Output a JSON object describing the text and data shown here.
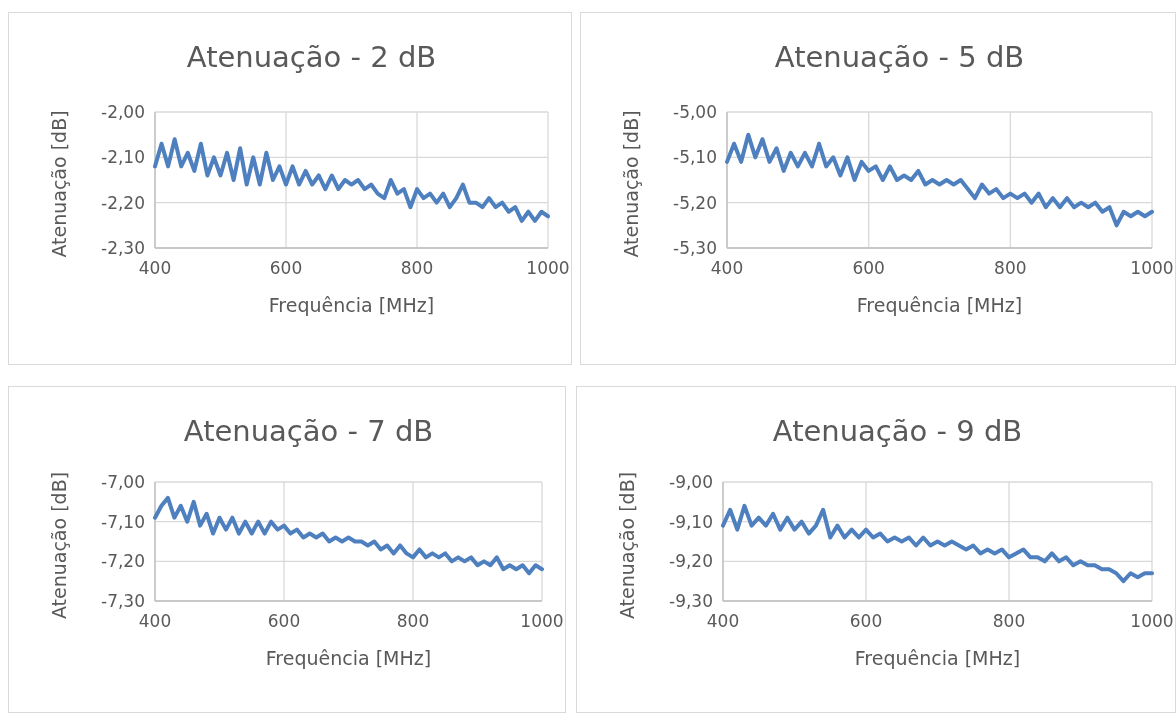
{
  "chart_data": [
    {
      "type": "line",
      "title": "Atenuação - 2 dB",
      "xlabel": "Frequência [MHz]",
      "ylabel": "Atenuação [dB]",
      "grid": true,
      "xlim": [
        400,
        1000
      ],
      "xticks": [
        400,
        600,
        800,
        1000
      ],
      "ylim": [
        -2.3,
        -2.0
      ],
      "yticks": [
        {
          "value": -2.3,
          "label": "-2,30"
        },
        {
          "value": -2.2,
          "label": "-2,20"
        },
        {
          "value": -2.1,
          "label": "-2,10"
        },
        {
          "value": -2.0,
          "label": "-2,00"
        }
      ],
      "x": [
        400,
        410,
        420,
        430,
        440,
        450,
        460,
        470,
        480,
        490,
        500,
        510,
        520,
        530,
        540,
        550,
        560,
        570,
        580,
        590,
        600,
        610,
        620,
        630,
        640,
        650,
        660,
        670,
        680,
        690,
        700,
        710,
        720,
        730,
        740,
        750,
        760,
        770,
        780,
        790,
        800,
        810,
        820,
        830,
        840,
        850,
        860,
        870,
        880,
        890,
        900,
        910,
        920,
        930,
        940,
        950,
        960,
        970,
        980,
        990,
        1000
      ],
      "series": [
        {
          "color": "#4e7fbf",
          "values": [
            -2.12,
            -2.07,
            -2.12,
            -2.06,
            -2.12,
            -2.09,
            -2.13,
            -2.07,
            -2.14,
            -2.1,
            -2.14,
            -2.09,
            -2.15,
            -2.08,
            -2.16,
            -2.1,
            -2.16,
            -2.09,
            -2.15,
            -2.12,
            -2.16,
            -2.12,
            -2.16,
            -2.13,
            -2.16,
            -2.14,
            -2.17,
            -2.14,
            -2.17,
            -2.15,
            -2.16,
            -2.15,
            -2.17,
            -2.16,
            -2.18,
            -2.19,
            -2.15,
            -2.18,
            -2.17,
            -2.21,
            -2.17,
            -2.19,
            -2.18,
            -2.2,
            -2.18,
            -2.21,
            -2.19,
            -2.16,
            -2.2,
            -2.2,
            -2.21,
            -2.19,
            -2.21,
            -2.2,
            -2.22,
            -2.21,
            -2.24,
            -2.22,
            -2.24,
            -2.22,
            -2.23
          ]
        }
      ]
    },
    {
      "type": "line",
      "title": "Atenuação - 5 dB",
      "xlabel": "Frequência [MHz]",
      "ylabel": "Atenuação [dB]",
      "grid": true,
      "xlim": [
        400,
        1000
      ],
      "xticks": [
        400,
        600,
        800,
        1000
      ],
      "ylim": [
        -5.3,
        -5.0
      ],
      "yticks": [
        {
          "value": -5.3,
          "label": "-5,30"
        },
        {
          "value": -5.2,
          "label": "-5,20"
        },
        {
          "value": -5.1,
          "label": "-5,10"
        },
        {
          "value": -5.0,
          "label": "-5,00"
        }
      ],
      "x": [
        400,
        410,
        420,
        430,
        440,
        450,
        460,
        470,
        480,
        490,
        500,
        510,
        520,
        530,
        540,
        550,
        560,
        570,
        580,
        590,
        600,
        610,
        620,
        630,
        640,
        650,
        660,
        670,
        680,
        690,
        700,
        710,
        720,
        730,
        740,
        750,
        760,
        770,
        780,
        790,
        800,
        810,
        820,
        830,
        840,
        850,
        860,
        870,
        880,
        890,
        900,
        910,
        920,
        930,
        940,
        950,
        960,
        970,
        980,
        990,
        1000
      ],
      "series": [
        {
          "color": "#4e7fbf",
          "values": [
            -5.11,
            -5.07,
            -5.11,
            -5.05,
            -5.1,
            -5.06,
            -5.11,
            -5.08,
            -5.13,
            -5.09,
            -5.12,
            -5.09,
            -5.12,
            -5.07,
            -5.12,
            -5.1,
            -5.14,
            -5.1,
            -5.15,
            -5.11,
            -5.13,
            -5.12,
            -5.15,
            -5.12,
            -5.15,
            -5.14,
            -5.15,
            -5.13,
            -5.16,
            -5.15,
            -5.16,
            -5.15,
            -5.16,
            -5.15,
            -5.17,
            -5.19,
            -5.16,
            -5.18,
            -5.17,
            -5.19,
            -5.18,
            -5.19,
            -5.18,
            -5.2,
            -5.18,
            -5.21,
            -5.19,
            -5.21,
            -5.19,
            -5.21,
            -5.2,
            -5.21,
            -5.2,
            -5.22,
            -5.21,
            -5.25,
            -5.22,
            -5.23,
            -5.22,
            -5.23,
            -5.22
          ]
        }
      ]
    },
    {
      "type": "line",
      "title": "Atenuação - 7 dB",
      "xlabel": "Frequência [MHz]",
      "ylabel": "Atenuação [dB]",
      "grid": true,
      "xlim": [
        400,
        1000
      ],
      "xticks": [
        400,
        600,
        800,
        1000
      ],
      "ylim": [
        -7.3,
        -7.0
      ],
      "yticks": [
        {
          "value": -7.3,
          "label": "-7,30"
        },
        {
          "value": -7.2,
          "label": "-7,20"
        },
        {
          "value": -7.1,
          "label": "-7,10"
        },
        {
          "value": -7.0,
          "label": "-7,00"
        }
      ],
      "x": [
        400,
        410,
        420,
        430,
        440,
        450,
        460,
        470,
        480,
        490,
        500,
        510,
        520,
        530,
        540,
        550,
        560,
        570,
        580,
        590,
        600,
        610,
        620,
        630,
        640,
        650,
        660,
        670,
        680,
        690,
        700,
        710,
        720,
        730,
        740,
        750,
        760,
        770,
        780,
        790,
        800,
        810,
        820,
        830,
        840,
        850,
        860,
        870,
        880,
        890,
        900,
        910,
        920,
        930,
        940,
        950,
        960,
        970,
        980,
        990,
        1000
      ],
      "series": [
        {
          "color": "#4e7fbf",
          "values": [
            -7.09,
            -7.06,
            -7.04,
            -7.09,
            -7.06,
            -7.1,
            -7.05,
            -7.11,
            -7.08,
            -7.13,
            -7.09,
            -7.12,
            -7.09,
            -7.13,
            -7.1,
            -7.13,
            -7.1,
            -7.13,
            -7.1,
            -7.12,
            -7.11,
            -7.13,
            -7.12,
            -7.14,
            -7.13,
            -7.14,
            -7.13,
            -7.15,
            -7.14,
            -7.15,
            -7.14,
            -7.15,
            -7.15,
            -7.16,
            -7.15,
            -7.17,
            -7.16,
            -7.18,
            -7.16,
            -7.18,
            -7.19,
            -7.17,
            -7.19,
            -7.18,
            -7.19,
            -7.18,
            -7.2,
            -7.19,
            -7.2,
            -7.19,
            -7.21,
            -7.2,
            -7.21,
            -7.19,
            -7.22,
            -7.21,
            -7.22,
            -7.21,
            -7.23,
            -7.21,
            -7.22
          ]
        }
      ]
    },
    {
      "type": "line",
      "title": "Atenuação - 9 dB",
      "xlabel": "Frequência [MHz]",
      "ylabel": "Atenuação [dB]",
      "grid": true,
      "xlim": [
        400,
        1000
      ],
      "xticks": [
        400,
        600,
        800,
        1000
      ],
      "ylim": [
        -9.3,
        -9.0
      ],
      "yticks": [
        {
          "value": -9.3,
          "label": "-9,30"
        },
        {
          "value": -9.2,
          "label": "-9,20"
        },
        {
          "value": -9.1,
          "label": "-9,10"
        },
        {
          "value": -9.0,
          "label": "-9,00"
        }
      ],
      "x": [
        400,
        410,
        420,
        430,
        440,
        450,
        460,
        470,
        480,
        490,
        500,
        510,
        520,
        530,
        540,
        550,
        560,
        570,
        580,
        590,
        600,
        610,
        620,
        630,
        640,
        650,
        660,
        670,
        680,
        690,
        700,
        710,
        720,
        730,
        740,
        750,
        760,
        770,
        780,
        790,
        800,
        810,
        820,
        830,
        840,
        850,
        860,
        870,
        880,
        890,
        900,
        910,
        920,
        930,
        940,
        950,
        960,
        970,
        980,
        990,
        1000
      ],
      "series": [
        {
          "color": "#4e7fbf",
          "values": [
            -9.11,
            -9.07,
            -9.12,
            -9.06,
            -9.11,
            -9.09,
            -9.11,
            -9.08,
            -9.12,
            -9.09,
            -9.12,
            -9.1,
            -9.13,
            -9.11,
            -9.07,
            -9.14,
            -9.11,
            -9.14,
            -9.12,
            -9.14,
            -9.12,
            -9.14,
            -9.13,
            -9.15,
            -9.14,
            -9.15,
            -9.14,
            -9.16,
            -9.14,
            -9.16,
            -9.15,
            -9.16,
            -9.15,
            -9.16,
            -9.17,
            -9.16,
            -9.18,
            -9.17,
            -9.18,
            -9.17,
            -9.19,
            -9.18,
            -9.17,
            -9.19,
            -9.19,
            -9.2,
            -9.18,
            -9.2,
            -9.19,
            -9.21,
            -9.2,
            -9.21,
            -9.21,
            -9.22,
            -9.22,
            -9.23,
            -9.25,
            -9.23,
            -9.24,
            -9.23,
            -9.23
          ]
        }
      ]
    }
  ]
}
